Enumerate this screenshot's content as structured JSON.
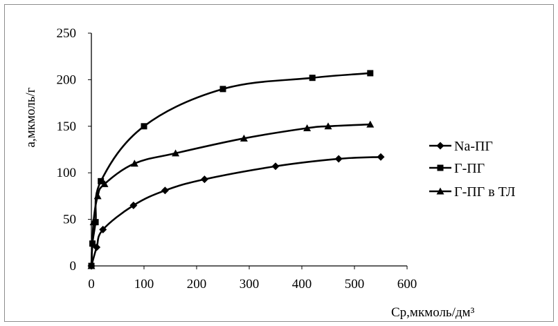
{
  "chart_data": {
    "type": "line",
    "title": "",
    "xlabel": "Ср,мкмоль/дм³",
    "ylabel": "а,мкмоль/г",
    "xlim": [
      0,
      600
    ],
    "ylim": [
      0,
      250
    ],
    "x_ticks": [
      "0",
      "100",
      "200",
      "300",
      "400",
      "500",
      "600"
    ],
    "y_ticks": [
      "0",
      "50",
      "100",
      "150",
      "200",
      "250"
    ],
    "grid": false,
    "legend_position": "right",
    "series": [
      {
        "name": "Na-ПГ",
        "marker": "diamond",
        "color": "#000000",
        "x": [
          0,
          10,
          22,
          80,
          140,
          215,
          350,
          470,
          550
        ],
        "y": [
          0,
          20,
          39,
          65,
          81,
          93,
          107,
          115,
          117
        ]
      },
      {
        "name": "Г-ПГ",
        "marker": "square",
        "color": "#000000",
        "x": [
          0,
          2,
          8,
          18,
          100,
          250,
          420,
          530
        ],
        "y": [
          0,
          24,
          47,
          91,
          150,
          190,
          202,
          207
        ]
      },
      {
        "name": "Г-ПГ в ТЛ",
        "marker": "triangle",
        "color": "#000000",
        "x": [
          0,
          4,
          12,
          25,
          82,
          160,
          290,
          410,
          450,
          530
        ],
        "y": [
          0,
          47,
          75,
          88,
          110,
          121,
          137,
          148,
          150,
          152
        ]
      }
    ]
  }
}
